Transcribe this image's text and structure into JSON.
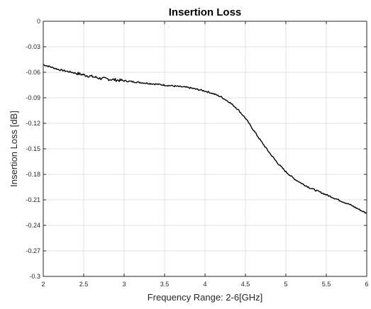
{
  "chart_data": {
    "type": "line",
    "title": "Insertion Loss",
    "xlabel": "Frequency Range: 2-6[GHz]",
    "ylabel": "Insertion Loss [dB]",
    "xlim": [
      2,
      6
    ],
    "ylim": [
      -0.3,
      0
    ],
    "grid": true,
    "legend": "none",
    "x_ticks": [
      "2",
      "2.5",
      "3",
      "3.5",
      "4",
      "4.5",
      "5",
      "5.5",
      "6"
    ],
    "y_ticks": [
      "0",
      "-0.03",
      "-0.06",
      "-0.09",
      "-0.12",
      "-0.15",
      "-0.18",
      "-0.21",
      "-0.24",
      "-0.27",
      "-0.3"
    ],
    "series": [
      {
        "color": "#000000",
        "x": [
          2.0,
          2.1,
          2.2,
          2.3,
          2.4,
          2.5,
          2.6,
          2.7,
          2.8,
          2.9,
          3.0,
          3.1,
          3.2,
          3.3,
          3.4,
          3.5,
          3.6,
          3.7,
          3.8,
          3.9,
          4.0,
          4.1,
          4.2,
          4.3,
          4.4,
          4.5,
          4.6,
          4.7,
          4.8,
          4.9,
          5.0,
          5.1,
          5.2,
          5.3,
          5.4,
          5.5,
          5.6,
          5.7,
          5.8,
          5.9,
          6.0
        ],
        "y": [
          -0.051,
          -0.054,
          -0.057,
          -0.059,
          -0.061,
          -0.063,
          -0.065,
          -0.067,
          -0.068,
          -0.069,
          -0.07,
          -0.071,
          -0.072,
          -0.073,
          -0.074,
          -0.075,
          -0.076,
          -0.077,
          -0.078,
          -0.08,
          -0.082,
          -0.085,
          -0.089,
          -0.095,
          -0.103,
          -0.114,
          -0.128,
          -0.142,
          -0.155,
          -0.167,
          -0.177,
          -0.185,
          -0.191,
          -0.196,
          -0.2,
          -0.204,
          -0.208,
          -0.212,
          -0.216,
          -0.221,
          -0.226
        ]
      }
    ]
  }
}
